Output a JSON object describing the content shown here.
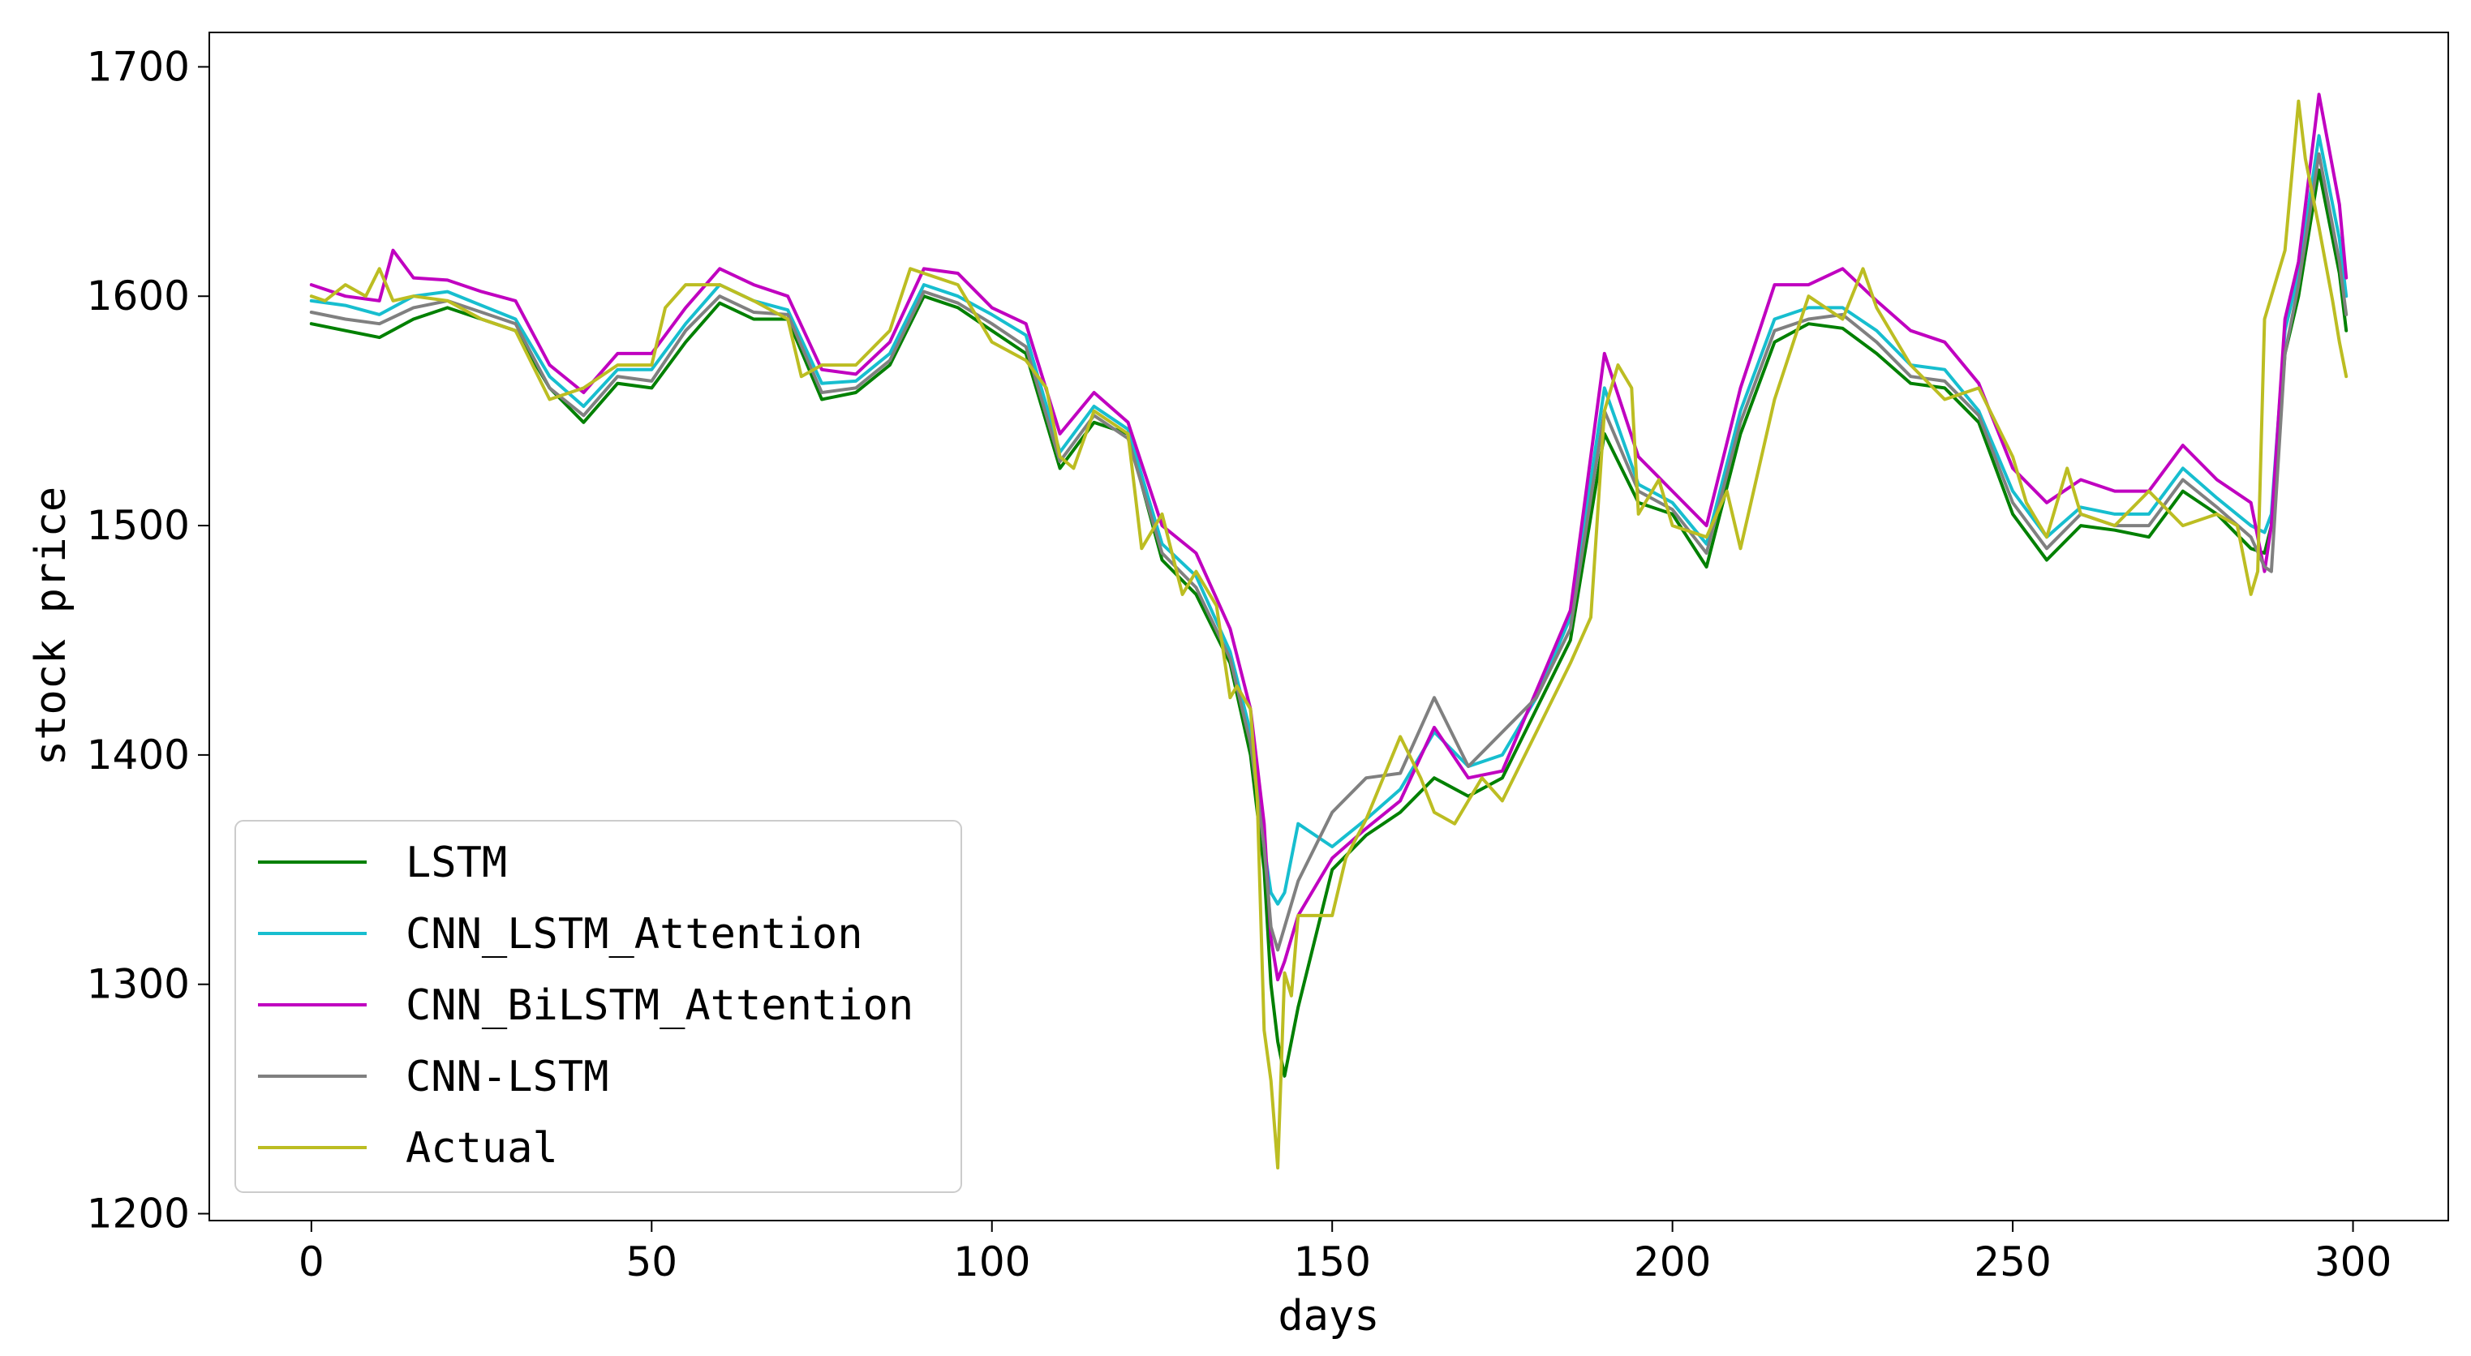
{
  "chart_data": {
    "type": "line",
    "title": "",
    "xlabel": "days",
    "ylabel": "stock price",
    "xlim": [
      -15,
      314
    ],
    "ylim": [
      1197,
      1715
    ],
    "xticks": [
      0,
      50,
      100,
      150,
      200,
      250,
      300
    ],
    "yticks": [
      1200,
      1300,
      1400,
      1500,
      1600,
      1700
    ],
    "grid": false,
    "legend_position": "lower-left",
    "colors": {
      "LSTM": "#008000",
      "CNN_LSTM_Attention": "#17becf",
      "CNN_BiLSTM_Attention": "#c000c0",
      "CNN-LSTM": "#808080",
      "Actual": "#bcbd22"
    },
    "series": [
      {
        "name": "LSTM",
        "color": "#008000",
        "x": [
          0,
          5,
          10,
          15,
          20,
          25,
          30,
          35,
          40,
          45,
          50,
          55,
          60,
          65,
          70,
          75,
          80,
          85,
          90,
          95,
          100,
          105,
          110,
          115,
          120,
          125,
          130,
          135,
          138,
          140,
          141,
          142,
          143,
          145,
          150,
          155,
          160,
          165,
          170,
          175,
          180,
          185,
          190,
          195,
          200,
          205,
          210,
          215,
          220,
          225,
          230,
          235,
          240,
          245,
          250,
          255,
          260,
          265,
          270,
          275,
          280,
          285,
          287,
          288,
          290,
          292,
          295,
          298,
          299
        ],
        "y": [
          1588,
          1585,
          1582,
          1590,
          1595,
          1590,
          1585,
          1560,
          1545,
          1562,
          1560,
          1580,
          1597,
          1590,
          1590,
          1555,
          1558,
          1570,
          1600,
          1595,
          1585,
          1575,
          1525,
          1545,
          1540,
          1485,
          1470,
          1440,
          1400,
          1350,
          1300,
          1275,
          1260,
          1290,
          1350,
          1365,
          1375,
          1390,
          1382,
          1390,
          1420,
          1450,
          1540,
          1510,
          1505,
          1482,
          1540,
          1580,
          1588,
          1586,
          1575,
          1562,
          1560,
          1545,
          1505,
          1485,
          1500,
          1498,
          1495,
          1515,
          1505,
          1490,
          1488,
          1500,
          1575,
          1600,
          1655,
          1610,
          1585
        ]
      },
      {
        "name": "CNN_LSTM_Attention",
        "color": "#17becf",
        "x": [
          0,
          5,
          10,
          15,
          20,
          25,
          30,
          35,
          40,
          45,
          50,
          55,
          60,
          65,
          70,
          75,
          80,
          85,
          90,
          95,
          100,
          105,
          110,
          115,
          120,
          125,
          130,
          135,
          138,
          140,
          141,
          142,
          143,
          145,
          150,
          155,
          160,
          165,
          170,
          175,
          180,
          185,
          190,
          195,
          200,
          205,
          210,
          215,
          220,
          225,
          230,
          235,
          240,
          245,
          250,
          255,
          260,
          265,
          270,
          275,
          280,
          285,
          287,
          288,
          290,
          292,
          295,
          298,
          299
        ],
        "y": [
          1598,
          1596,
          1592,
          1600,
          1602,
          1596,
          1590,
          1565,
          1552,
          1568,
          1568,
          1588,
          1605,
          1598,
          1594,
          1562,
          1563,
          1575,
          1605,
          1600,
          1592,
          1583,
          1532,
          1552,
          1542,
          1492,
          1478,
          1445,
          1410,
          1360,
          1340,
          1335,
          1340,
          1370,
          1360,
          1372,
          1385,
          1410,
          1395,
          1400,
          1425,
          1460,
          1560,
          1518,
          1510,
          1492,
          1550,
          1590,
          1595,
          1595,
          1585,
          1570,
          1568,
          1550,
          1515,
          1495,
          1508,
          1505,
          1505,
          1525,
          1512,
          1500,
          1497,
          1505,
          1585,
          1610,
          1670,
          1625,
          1600
        ]
      },
      {
        "name": "CNN_BiLSTM_Attention",
        "color": "#c000c0",
        "x": [
          0,
          5,
          10,
          12,
          15,
          20,
          25,
          30,
          35,
          40,
          45,
          50,
          55,
          60,
          65,
          70,
          75,
          80,
          85,
          90,
          95,
          100,
          105,
          110,
          115,
          120,
          125,
          130,
          135,
          138,
          140,
          141,
          142,
          143,
          145,
          150,
          155,
          160,
          165,
          170,
          175,
          180,
          185,
          190,
          195,
          200,
          205,
          210,
          215,
          220,
          225,
          230,
          235,
          240,
          245,
          250,
          255,
          260,
          265,
          270,
          275,
          280,
          285,
          287,
          288,
          290,
          292,
          295,
          298,
          299
        ],
        "y": [
          1605,
          1600,
          1598,
          1620,
          1608,
          1607,
          1602,
          1598,
          1570,
          1558,
          1575,
          1575,
          1595,
          1612,
          1605,
          1600,
          1568,
          1566,
          1580,
          1612,
          1610,
          1595,
          1588,
          1540,
          1558,
          1545,
          1500,
          1488,
          1455,
          1420,
          1370,
          1320,
          1302,
          1310,
          1330,
          1355,
          1368,
          1380,
          1412,
          1390,
          1393,
          1428,
          1463,
          1575,
          1530,
          1515,
          1500,
          1560,
          1605,
          1605,
          1612,
          1598,
          1585,
          1580,
          1562,
          1525,
          1510,
          1520,
          1515,
          1515,
          1535,
          1520,
          1510,
          1480,
          1500,
          1590,
          1615,
          1688,
          1640,
          1608
        ]
      },
      {
        "name": "CNN-LSTM",
        "color": "#808080",
        "x": [
          0,
          5,
          10,
          15,
          20,
          25,
          30,
          35,
          40,
          45,
          50,
          55,
          60,
          65,
          70,
          75,
          80,
          85,
          90,
          95,
          100,
          105,
          110,
          115,
          120,
          125,
          130,
          135,
          138,
          140,
          141,
          142,
          143,
          145,
          150,
          155,
          160,
          165,
          170,
          175,
          180,
          185,
          190,
          195,
          200,
          205,
          210,
          215,
          220,
          225,
          230,
          235,
          240,
          245,
          250,
          255,
          260,
          265,
          270,
          275,
          280,
          285,
          287,
          288,
          290,
          292,
          295,
          298,
          299
        ],
        "y": [
          1593,
          1590,
          1588,
          1595,
          1598,
          1593,
          1588,
          1560,
          1548,
          1565,
          1563,
          1585,
          1600,
          1593,
          1592,
          1558,
          1560,
          1572,
          1602,
          1597,
          1588,
          1578,
          1528,
          1548,
          1538,
          1488,
          1473,
          1442,
          1405,
          1360,
          1325,
          1315,
          1325,
          1345,
          1375,
          1390,
          1392,
          1425,
          1395,
          1410,
          1425,
          1455,
          1550,
          1515,
          1507,
          1488,
          1545,
          1585,
          1590,
          1592,
          1580,
          1565,
          1563,
          1548,
          1510,
          1490,
          1505,
          1500,
          1500,
          1520,
          1508,
          1495,
          1482,
          1480,
          1575,
          1605,
          1662,
          1615,
          1592
        ]
      },
      {
        "name": "Actual",
        "color": "#bcbd22",
        "x": [
          0,
          2,
          5,
          8,
          10,
          12,
          15,
          20,
          25,
          30,
          35,
          40,
          45,
          50,
          52,
          55,
          60,
          65,
          70,
          72,
          75,
          80,
          85,
          88,
          90,
          95,
          100,
          105,
          108,
          110,
          112,
          115,
          120,
          122,
          125,
          128,
          130,
          133,
          135,
          136,
          138,
          139,
          140,
          141,
          142,
          143,
          144,
          145,
          150,
          152,
          155,
          160,
          163,
          165,
          168,
          170,
          172,
          175,
          180,
          185,
          188,
          190,
          192,
          194,
          195,
          198,
          200,
          205,
          208,
          210,
          215,
          220,
          225,
          228,
          230,
          235,
          240,
          245,
          250,
          252,
          255,
          258,
          260,
          265,
          270,
          275,
          280,
          283,
          285,
          286,
          287,
          290,
          292,
          293,
          295,
          297,
          298,
          299
        ],
        "y": [
          1600,
          1598,
          1605,
          1600,
          1612,
          1598,
          1600,
          1598,
          1590,
          1585,
          1555,
          1560,
          1570,
          1570,
          1595,
          1605,
          1605,
          1598,
          1590,
          1565,
          1570,
          1570,
          1585,
          1612,
          1610,
          1605,
          1580,
          1572,
          1560,
          1530,
          1525,
          1550,
          1540,
          1490,
          1505,
          1470,
          1480,
          1465,
          1425,
          1430,
          1420,
          1380,
          1280,
          1258,
          1220,
          1305,
          1295,
          1330,
          1330,
          1355,
          1372,
          1408,
          1390,
          1375,
          1370,
          1380,
          1390,
          1380,
          1410,
          1440,
          1460,
          1550,
          1570,
          1560,
          1505,
          1520,
          1500,
          1495,
          1515,
          1490,
          1555,
          1600,
          1590,
          1612,
          1595,
          1570,
          1555,
          1560,
          1530,
          1510,
          1495,
          1525,
          1505,
          1500,
          1515,
          1500,
          1505,
          1500,
          1470,
          1480,
          1590,
          1620,
          1685,
          1660,
          1630,
          1598,
          1580,
          1565
        ]
      }
    ]
  }
}
